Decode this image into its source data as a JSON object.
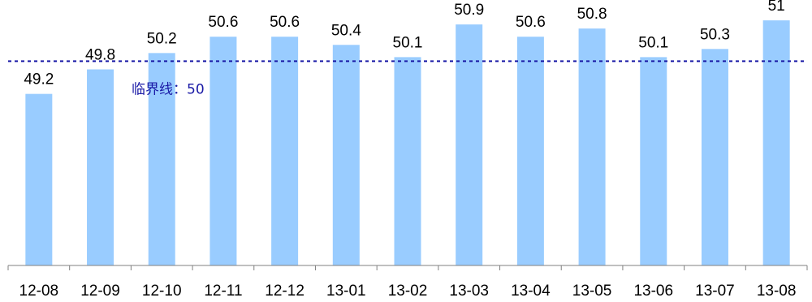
{
  "chart_data": {
    "type": "bar",
    "categories": [
      "12-08",
      "12-09",
      "12-10",
      "12-11",
      "12-12",
      "13-01",
      "13-02",
      "13-03",
      "13-04",
      "13-05",
      "13-06",
      "13-07",
      "13-08"
    ],
    "values": [
      49.2,
      49.8,
      50.2,
      50.6,
      50.6,
      50.4,
      50.1,
      50.9,
      50.6,
      50.8,
      50.1,
      50.3,
      51
    ],
    "value_labels": [
      "49.2",
      "49.8",
      "50.2",
      "50.6",
      "50.6",
      "50.4",
      "50.1",
      "50.9",
      "50.6",
      "50.8",
      "50.1",
      "50.3",
      "51"
    ],
    "title": "",
    "xlabel": "",
    "ylabel": "",
    "ylim": [
      45,
      51.3
    ],
    "grid": false,
    "legend": "none",
    "bar_color": "#99ccff",
    "threshold": {
      "value": 50,
      "label": "临界线：50",
      "color": "#1a1aa6",
      "style": "dotted"
    }
  }
}
